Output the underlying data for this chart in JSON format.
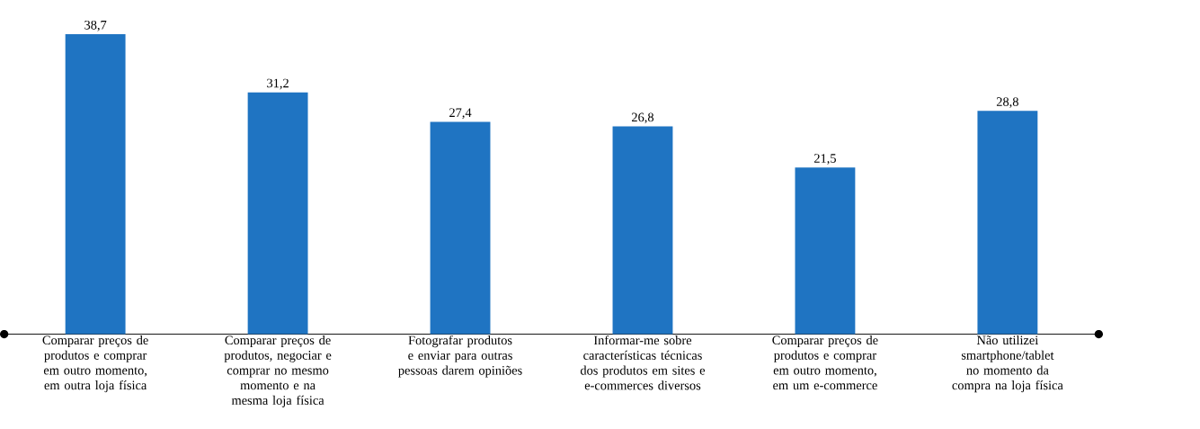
{
  "chart_data": {
    "type": "bar",
    "categories": [
      "Comparar preços de produtos e comprar em outro momento, em outra loja física",
      "Comparar preços de produtos, negociar e comprar no mesmo momento e na mesma loja física",
      "Fotografar produtos e enviar para outras pessoas darem opiniões",
      "Informar-me sobre características técnicas dos produtos em sites e e-commerces diversos",
      "Comparar preços de produtos e comprar em outro momento, em um e-commerce",
      "Não utilizei smartphone/tablet no momento da compra na loja física"
    ],
    "values": [
      38.7,
      31.2,
      27.4,
      26.8,
      21.5,
      28.8
    ],
    "value_labels": [
      "38,7",
      "31,2",
      "27,4",
      "26,8",
      "21,5",
      "28,8"
    ],
    "color": "#1f74c2"
  }
}
